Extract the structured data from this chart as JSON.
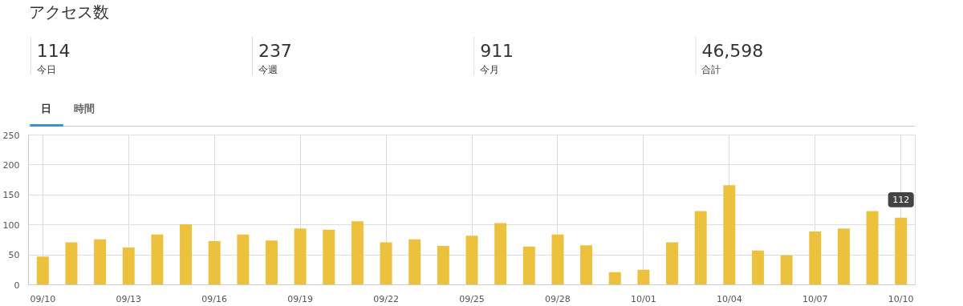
{
  "chart_data": [
    {
      "type": "other",
      "title": "アクセス数",
      "categories": [
        "今日",
        "今週",
        "今月",
        "合計"
      ],
      "values": [
        114,
        237,
        911,
        46598
      ],
      "value_labels": [
        "114",
        "237",
        "911",
        "46,598"
      ],
      "annotations": [
        "日",
        "時間"
      ]
    },
    {
      "type": "bar",
      "categories": [
        "09/10",
        null,
        null,
        "09/13",
        null,
        null,
        "09/16",
        null,
        null,
        "09/19",
        null,
        null,
        "09/22",
        null,
        null,
        "09/25",
        null,
        null,
        "09/28",
        null,
        null,
        "10/01",
        null,
        null,
        "10/04",
        null,
        null,
        "10/07",
        null,
        null,
        "10/10"
      ],
      "values": [
        47,
        71,
        76,
        62,
        84,
        101,
        73,
        84,
        74,
        94,
        92,
        106,
        71,
        76,
        65,
        82,
        103,
        64,
        84,
        66,
        21,
        25,
        71,
        123,
        166,
        57,
        49,
        89,
        94,
        123,
        112
      ],
      "color": "#ecc13e",
      "ylim": [
        0,
        250
      ],
      "yticks": [
        0,
        50,
        100,
        150,
        200,
        250
      ],
      "grid": true,
      "annotations": [
        {
          "text": "112",
          "x": "10/10",
          "y": 112
        }
      ]
    }
  ]
}
